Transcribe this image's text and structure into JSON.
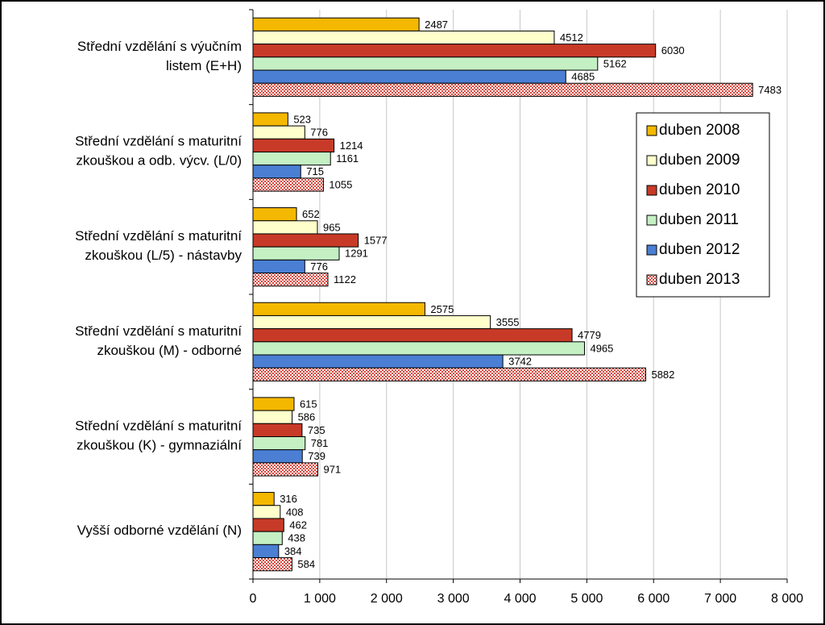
{
  "chart_data": {
    "type": "bar",
    "orientation": "horizontal",
    "categories": [
      "Střední vzdělání s výučním\nlistem (E+H)",
      "Střední vzdělání s maturitní\nzkouškou a odb. výcv. (L/0)",
      "Střední vzdělání s maturitní\nzkouškou (L/5) - nástavby",
      "Střední vzdělání s maturitní\nzkouškou (M) - odborné",
      "Střední vzdělání s maturitní\nzkouškou (K) - gymnaziální",
      "Vyšší odborné vzdělání (N)"
    ],
    "series": [
      {
        "name": "duben 2008",
        "color": "#f5b800",
        "values": [
          2487,
          523,
          652,
          2575,
          615,
          316
        ]
      },
      {
        "name": "duben 2009",
        "color": "#ffffcc",
        "values": [
          4512,
          776,
          965,
          3555,
          586,
          408
        ]
      },
      {
        "name": "duben 2010",
        "color": "#c83a28",
        "values": [
          6030,
          1214,
          1577,
          4779,
          735,
          462
        ]
      },
      {
        "name": "duben 2011",
        "color": "#c4f0c4",
        "values": [
          5162,
          1161,
          1291,
          4965,
          781,
          438
        ]
      },
      {
        "name": "duben 2012",
        "color": "#4a7fd4",
        "values": [
          4685,
          715,
          776,
          3742,
          739,
          384
        ]
      },
      {
        "name": "duben 2013",
        "color": "#d94a40",
        "pattern": "checker",
        "values": [
          7483,
          1055,
          1122,
          5882,
          971,
          584
        ]
      }
    ],
    "xlim": [
      0,
      8000
    ],
    "xticks": [
      0,
      {
        "value": 1000,
        "label": "1 000"
      },
      {
        "value": 2000,
        "label": "2 000"
      },
      {
        "value": 3000,
        "label": "3 000"
      },
      {
        "value": 4000,
        "label": "4 000"
      },
      {
        "value": 5000,
        "label": "5 000"
      },
      {
        "value": 6000,
        "label": "6 000"
      },
      {
        "value": 7000,
        "label": "7 000"
      },
      {
        "value": 8000,
        "label": "8 000"
      }
    ],
    "grid": true,
    "legend": "right"
  }
}
